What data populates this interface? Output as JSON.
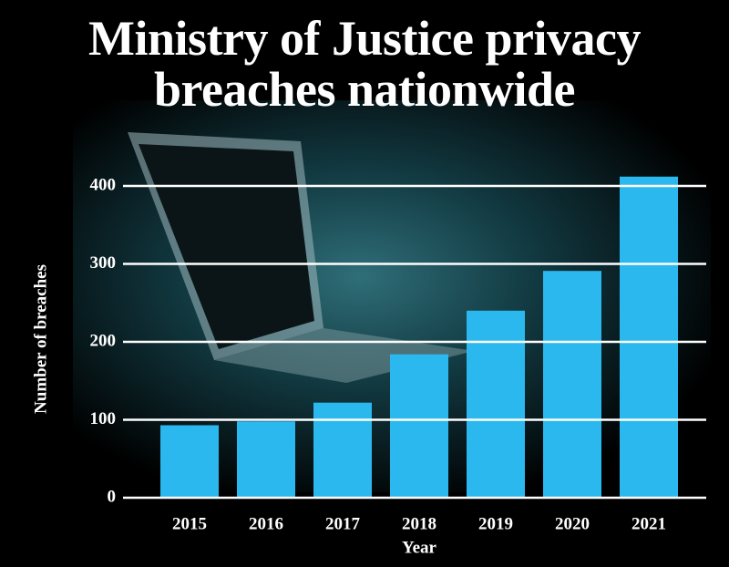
{
  "chart_data": {
    "type": "bar",
    "title": "Ministry of Justice privacy breaches nationwide",
    "x_label": "Year",
    "y_label": "Number of breaches",
    "categories": [
      "2015",
      "2016",
      "2017",
      "2018",
      "2019",
      "2020",
      "2021"
    ],
    "values": [
      93,
      98,
      122,
      184,
      240,
      291,
      412
    ],
    "color": "#2ab8ee",
    "ylim": [
      0,
      400
    ],
    "yticks": [
      0,
      100,
      200,
      300,
      400
    ],
    "grid": true
  }
}
